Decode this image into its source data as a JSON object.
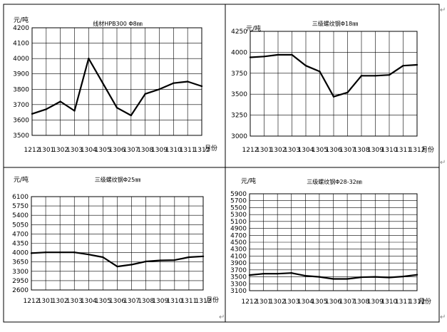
{
  "chart_data": [
    {
      "type": "line",
      "title": "线材HPB300 Φ8㎜",
      "ylabel": "元/吨",
      "xlabel_suffix": "月份",
      "categories": [
        "1212",
        "1301",
        "1302",
        "1303",
        "1304",
        "1305",
        "1306",
        "1307",
        "1308",
        "1309",
        "1310",
        "1311",
        "1312"
      ],
      "values": [
        3640,
        3670,
        3720,
        3660,
        4000,
        3840,
        3680,
        3630,
        3770,
        3800,
        3840,
        3850,
        3820
      ],
      "ylim": [
        3500,
        4200
      ],
      "yticks": [
        "3500",
        "3600",
        "3700",
        "3800",
        "3900",
        "4000",
        "4100",
        "4200"
      ],
      "grid": true,
      "line_color": "#000000"
    },
    {
      "type": "line",
      "title": "三级螺纹钢Φ18㎜",
      "ylabel": "元/吨",
      "xlabel_suffix": "月份",
      "categories": [
        "1212",
        "1301",
        "1302",
        "1303",
        "1304",
        "1305",
        "1306",
        "1307",
        "1308",
        "1309",
        "1310",
        "1311",
        "1312"
      ],
      "values": [
        3940,
        3950,
        3970,
        3970,
        3840,
        3770,
        3470,
        3520,
        3720,
        3720,
        3730,
        3840,
        3850
      ],
      "ylim": [
        3000,
        4250
      ],
      "yticks": [
        "3000",
        "3250",
        "3500",
        "3750",
        "4000",
        "4250"
      ],
      "grid": true,
      "line_color": "#000000"
    },
    {
      "type": "line",
      "title": "三级螺纹钢Φ25㎜",
      "ylabel": "元/吨",
      "xlabel_suffix": "月份",
      "categories": [
        "1212",
        "1301",
        "1302",
        "1303",
        "1304",
        "1305",
        "1306",
        "1307",
        "1308",
        "1309",
        "1310",
        "1311",
        "1312"
      ],
      "values": [
        3980,
        4010,
        4010,
        4010,
        3930,
        3830,
        3480,
        3550,
        3670,
        3710,
        3720,
        3830,
        3860
      ],
      "ylim": [
        2600,
        6100
      ],
      "yticks": [
        "2600",
        "2950",
        "3300",
        "3650",
        "4000",
        "4350",
        "4700",
        "5050",
        "5400",
        "5750",
        "6100"
      ],
      "grid": true,
      "line_color": "#000000"
    },
    {
      "type": "line",
      "title": "三级螺纹钢Φ28-32㎜",
      "ylabel": "元/吨",
      "xlabel_suffix": "月份",
      "categories": [
        "1212",
        "1301",
        "1302",
        "1303",
        "1304",
        "1305",
        "1306",
        "1307",
        "1308",
        "1309",
        "1310",
        "1311",
        "1312"
      ],
      "values": [
        3550,
        3590,
        3590,
        3610,
        3530,
        3500,
        3440,
        3440,
        3490,
        3500,
        3480,
        3510,
        3560
      ],
      "ylim": [
        3100,
        5900
      ],
      "yticks": [
        "3100",
        "3300",
        "3500",
        "3700",
        "3900",
        "4100",
        "4300",
        "4500",
        "4700",
        "4900",
        "5100",
        "5300",
        "5500",
        "5700",
        "5900"
      ],
      "grid": true,
      "line_color": "#000000"
    }
  ],
  "paragraph_mark": "↵"
}
